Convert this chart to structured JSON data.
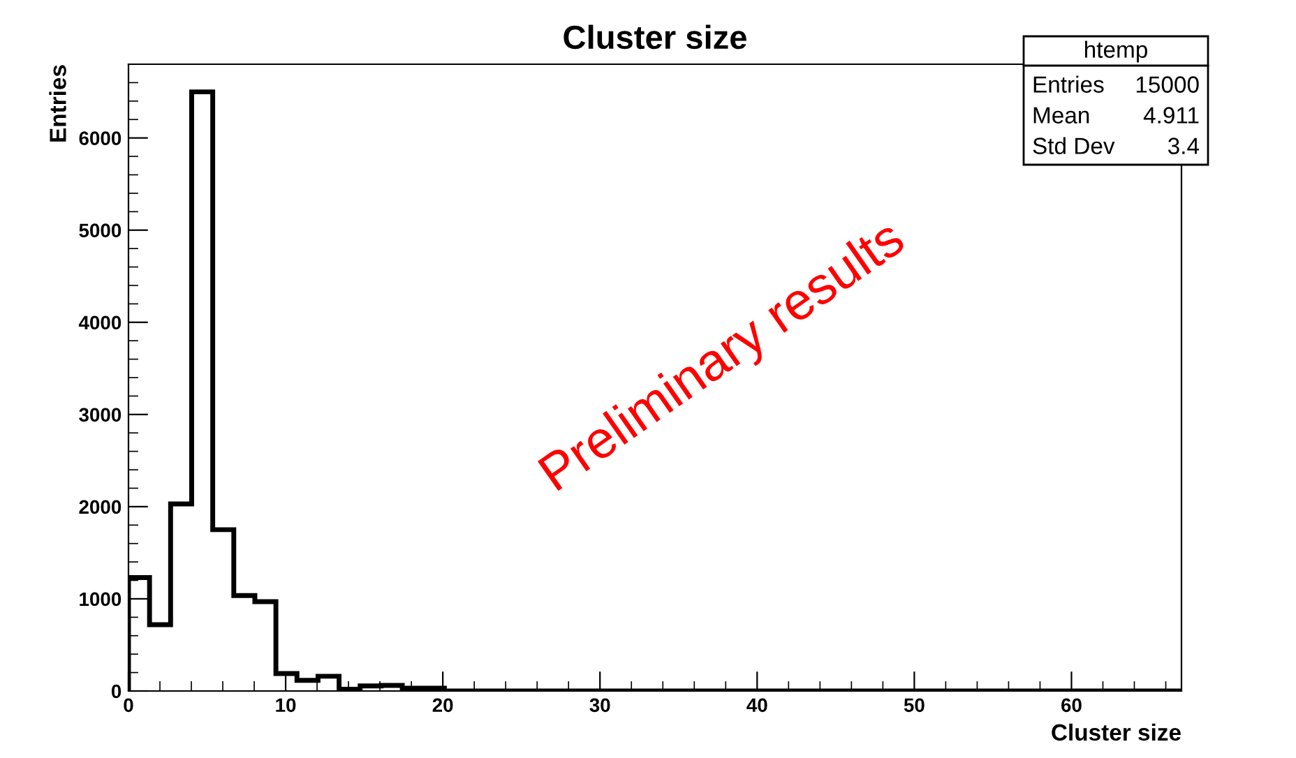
{
  "chart_data": {
    "type": "histogram",
    "title": "Cluster size",
    "xlabel": "Cluster size",
    "ylabel": "Entries",
    "bins": [
      0,
      1.34,
      2.68,
      4.02,
      5.36,
      6.7,
      8.04,
      9.38,
      10.72,
      12.06,
      13.4,
      14.74,
      16.08,
      17.42,
      18.76,
      20.1,
      21.44,
      22.78,
      24.12,
      25.46,
      26.8,
      28.14,
      29.48,
      30.82,
      32.16,
      33.5,
      34.84,
      36.18,
      37.52,
      38.86,
      40.2,
      41.54,
      42.88,
      44.22,
      45.56,
      46.9,
      48.24,
      49.58,
      50.92,
      52.26,
      53.6,
      54.94,
      56.28,
      57.62,
      58.96,
      60.3,
      61.64,
      62.98,
      64.32,
      65.66,
      67
    ],
    "values": [
      1230,
      720,
      2030,
      6500,
      1750,
      1035,
      970,
      190,
      115,
      160,
      20,
      55,
      60,
      30,
      30,
      0,
      0,
      0,
      0,
      0,
      0,
      0,
      0,
      0,
      0,
      0,
      0,
      0,
      0,
      0,
      0,
      0,
      0,
      0,
      0,
      0,
      0,
      0,
      0,
      0,
      0,
      0,
      0,
      0,
      0,
      0,
      0,
      0,
      0,
      0
    ],
    "color": "#000000",
    "xlim": [
      0,
      67
    ],
    "xticks": [
      0,
      10,
      20,
      30,
      40,
      50,
      60
    ],
    "ylim": [
      0,
      6800
    ],
    "yticks": [
      0,
      1000,
      2000,
      3000,
      4000,
      5000,
      6000
    ],
    "grid": false,
    "annotations": [
      "htemp",
      "Entries",
      "15000",
      "Mean",
      "4.911",
      "Std Dev",
      "3.4",
      "Preliminary results"
    ]
  }
}
